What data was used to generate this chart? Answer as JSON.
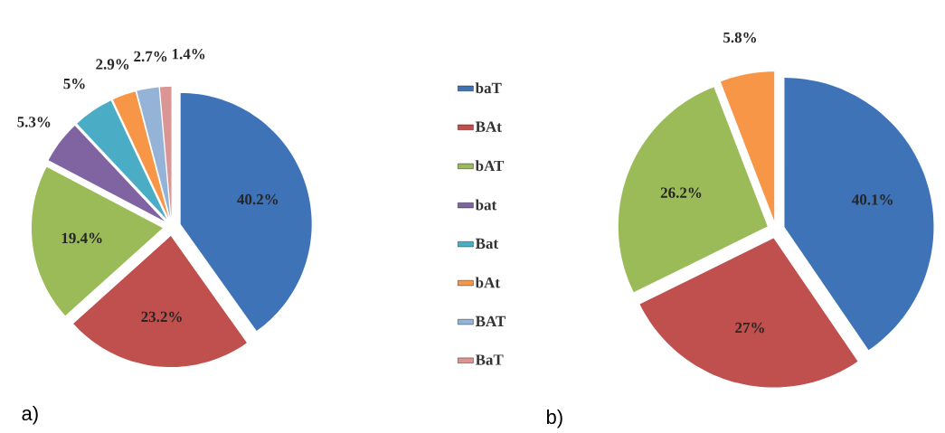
{
  "chart_data": [
    {
      "type": "pie",
      "categories": [
        "baT",
        "BAt",
        "bAT",
        "bat",
        "Bat",
        "bAt",
        "BAT",
        "BaT"
      ],
      "values": [
        40.2,
        23.2,
        19.4,
        5.3,
        5,
        2.9,
        2.7,
        1.4
      ],
      "colors": [
        "#3f73b8",
        "#c0504d",
        "#9bbb59",
        "#8064a2",
        "#4bacc6",
        "#f79646",
        "#95b3d7",
        "#d99694"
      ],
      "value_labels": [
        "40.2%",
        "23.2%",
        "19.4%",
        "5.3%",
        "5%",
        "2.9%",
        "2.7%",
        "1.4%"
      ],
      "legend": "right",
      "annotations": [
        "a)"
      ]
    },
    {
      "type": "pie",
      "categories": [
        null,
        null,
        null,
        null
      ],
      "values": [
        40.1,
        27,
        26.2,
        5.8
      ],
      "colors": [
        "#3f73b8",
        "#c0504d",
        "#9bbb59",
        "#f79646"
      ],
      "value_labels": [
        "40.1%",
        "27%",
        "26.2%",
        "5.8%"
      ],
      "annotations": [
        "b)"
      ]
    }
  ]
}
